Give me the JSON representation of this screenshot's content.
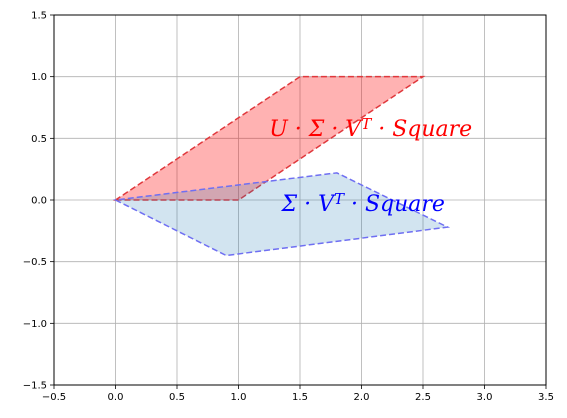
{
  "chart_data": {
    "type": "area",
    "xlim": [
      -0.5,
      3.5
    ],
    "ylim": [
      -1.5,
      1.5
    ],
    "xticks": [
      -0.5,
      0.0,
      0.5,
      1.0,
      1.5,
      2.0,
      2.5,
      3.0,
      3.5
    ],
    "yticks": [
      -1.5,
      -1.0,
      -0.5,
      0.0,
      0.5,
      1.0,
      1.5
    ],
    "xtick_labels": [
      "−0.5",
      "0.0",
      "0.5",
      "1.0",
      "1.5",
      "2.0",
      "2.5",
      "3.0",
      "3.5"
    ],
    "ytick_labels": [
      "−1.5",
      "−1.0",
      "−0.5",
      "0.0",
      "0.5",
      "1.0",
      "1.5"
    ],
    "grid": true,
    "series": [
      {
        "fill_color": "#ff0000",
        "fill_opacity": 0.3,
        "edge_color": "#e0383c",
        "points": [
          [
            0,
            0
          ],
          [
            1,
            0
          ],
          [
            2.5,
            1
          ],
          [
            1.5,
            1
          ]
        ]
      },
      {
        "fill_color": "#1f77b4",
        "fill_opacity": 0.2,
        "edge_color": "#6f6ff2",
        "points": [
          [
            0,
            0
          ],
          [
            0.9,
            -0.45
          ],
          [
            2.7,
            -0.22
          ],
          [
            1.8,
            0.22
          ]
        ]
      }
    ],
    "annotations": [
      {
        "id": "red",
        "text_parts": [
          {
            "t": "U",
            "sup": false
          },
          {
            "t": " · Σ · V",
            "sup": false
          },
          {
            "t": "T",
            "sup": true
          },
          {
            "t": " · ",
            "sup": false
          },
          {
            "t": "Square",
            "sup": false
          }
        ],
        "x": 1.25,
        "y": 0.52,
        "color": "#ff0000"
      },
      {
        "id": "blue",
        "text_parts": [
          {
            "t": "Σ · V",
            "sup": false
          },
          {
            "t": "T",
            "sup": true
          },
          {
            "t": " · ",
            "sup": false
          },
          {
            "t": "Square",
            "sup": false
          }
        ],
        "x": 1.35,
        "y": -0.09,
        "color": "#0000ff"
      }
    ]
  }
}
